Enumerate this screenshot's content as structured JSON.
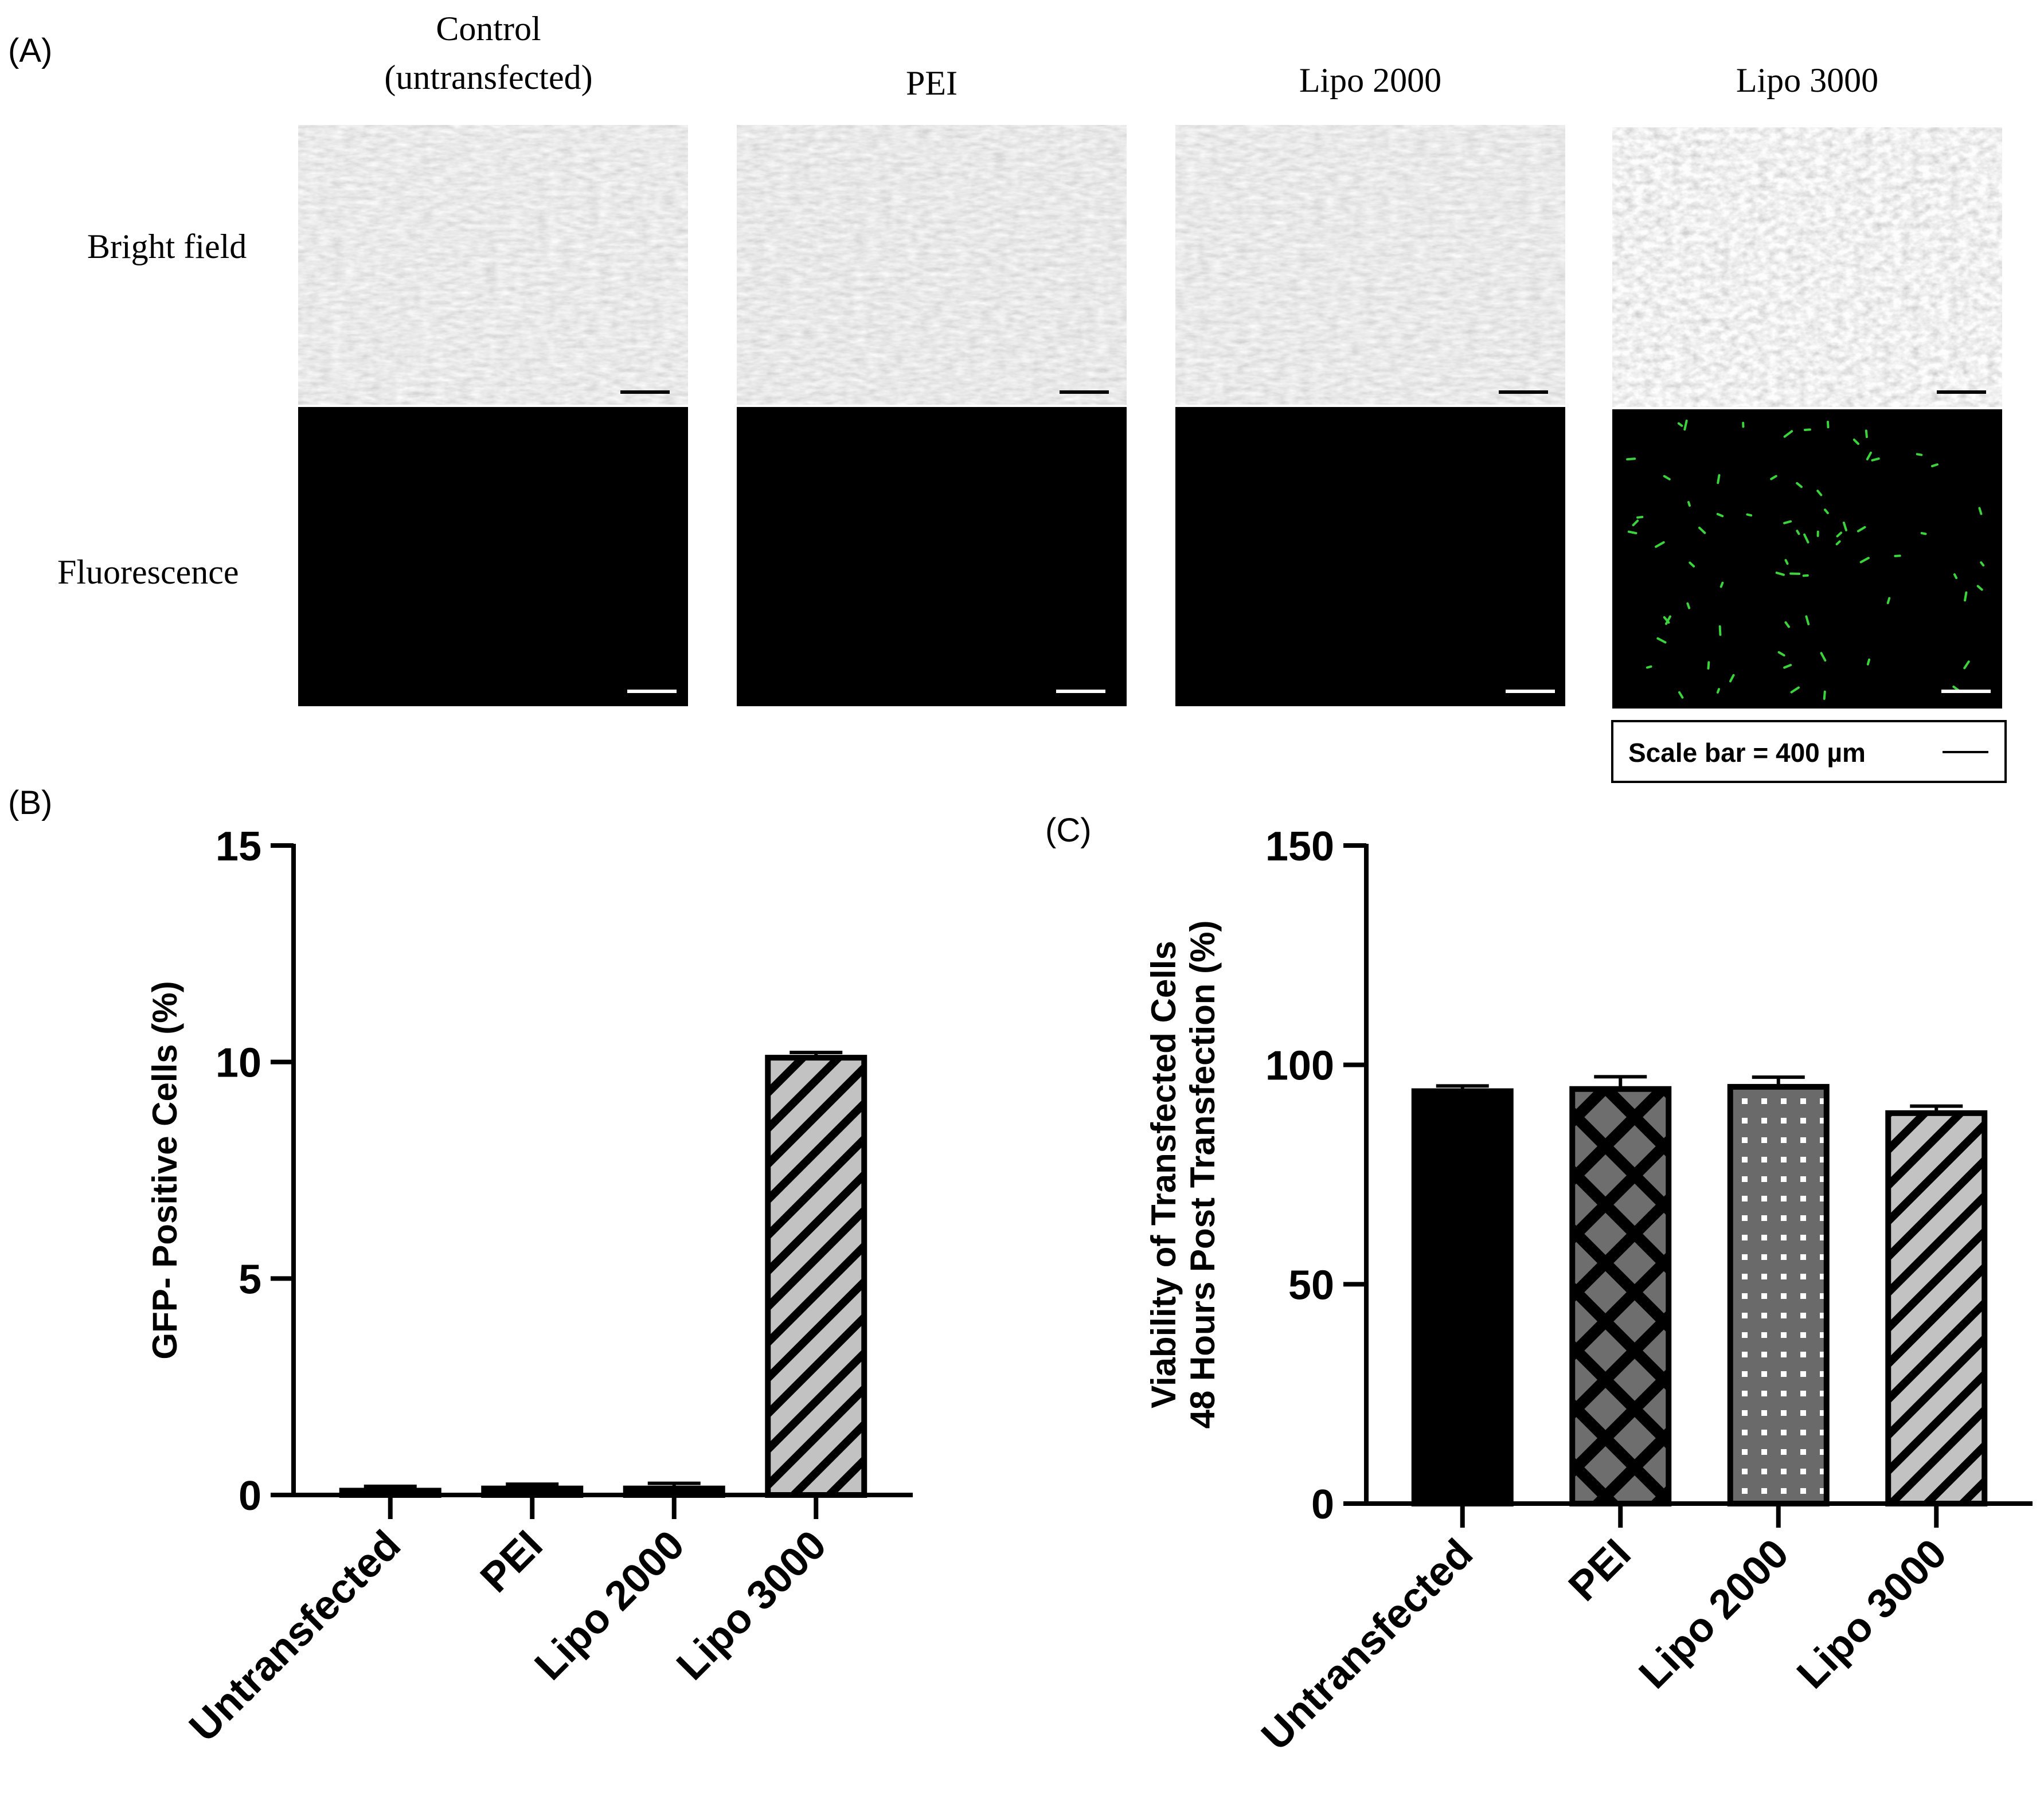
{
  "figure": {
    "panel_labels": {
      "a": "(A)",
      "b": "(B)",
      "c": "(C)"
    },
    "micrographs": {
      "columns": [
        "Control",
        "(untransfected)",
        "PEI",
        "Lipo 2000",
        "Lipo 3000"
      ],
      "rows": [
        "Bright field",
        "Fluorescence"
      ],
      "scale_bar": "Scale bar = 400 µm",
      "colors": {
        "bright_field": "#e6e6e6",
        "fluorescence_bg": "#000000",
        "gfp": "#3cd43c"
      }
    }
  },
  "chart_data": [
    {
      "id": "B",
      "type": "bar",
      "categories": [
        "Untransfected",
        "PEI",
        "Lipo 2000",
        "Lipo 3000"
      ],
      "values": [
        0.1,
        0.15,
        0.15,
        10.1
      ],
      "errors": [
        0.1,
        0.1,
        0.12,
        0.12
      ],
      "patterns": [
        "solid-black",
        "solid-black",
        "solid-black",
        "diagonal-stripe"
      ],
      "ylabel": "GFP- Positive Cells (%)",
      "xlabel": "",
      "ylim": [
        0,
        15
      ],
      "yticks": [
        0,
        5,
        10,
        15
      ],
      "grid": false
    },
    {
      "id": "C",
      "type": "bar",
      "categories": [
        "Untransfected",
        "PEI",
        "Lipo 2000",
        "Lipo 3000"
      ],
      "values": [
        94,
        94.5,
        95,
        89
      ],
      "errors": [
        1.2,
        2.8,
        2.2,
        1.6
      ],
      "patterns": [
        "solid-black",
        "crosshatch",
        "dots",
        "diagonal-stripe"
      ],
      "ylabel_lines": [
        "Viability of Transfected Cells",
        "48 Hours Post Transfection (%)"
      ],
      "xlabel": "",
      "ylim": [
        0,
        150
      ],
      "yticks": [
        0,
        50,
        100,
        150
      ],
      "grid": false
    }
  ]
}
